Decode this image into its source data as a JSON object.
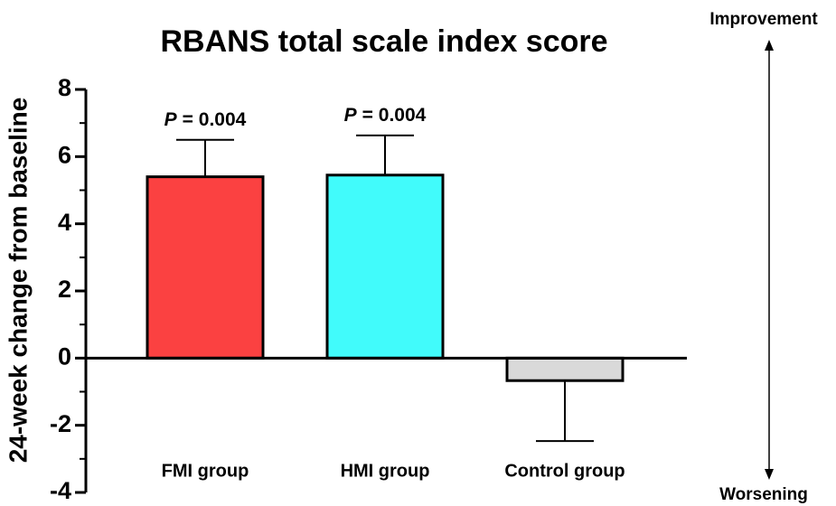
{
  "chart_data": {
    "type": "bar",
    "title": "RBANS total scale index score",
    "y_label": "24-week change from baseline",
    "categories": [
      "FMI group",
      "HMI group",
      "Control group"
    ],
    "values": [
      5.4,
      5.45,
      -0.67
    ],
    "errors": [
      1.1,
      1.18,
      1.8
    ],
    "colors": [
      "#fb4141",
      "#41fbfb",
      "#d9d9d9"
    ],
    "annotations": [
      {
        "prefix": "P",
        "text": "= 0.004"
      },
      {
        "prefix": "P",
        "text": "= 0.004"
      },
      null
    ],
    "ylim": [
      -4,
      8
    ],
    "yticks": [
      8,
      6,
      4,
      2,
      0,
      -2,
      -4
    ],
    "yminorticks": [
      7,
      5,
      3,
      1,
      -1,
      -3
    ],
    "direction_labels": {
      "up": "Improvement",
      "down": "Worsening"
    }
  }
}
